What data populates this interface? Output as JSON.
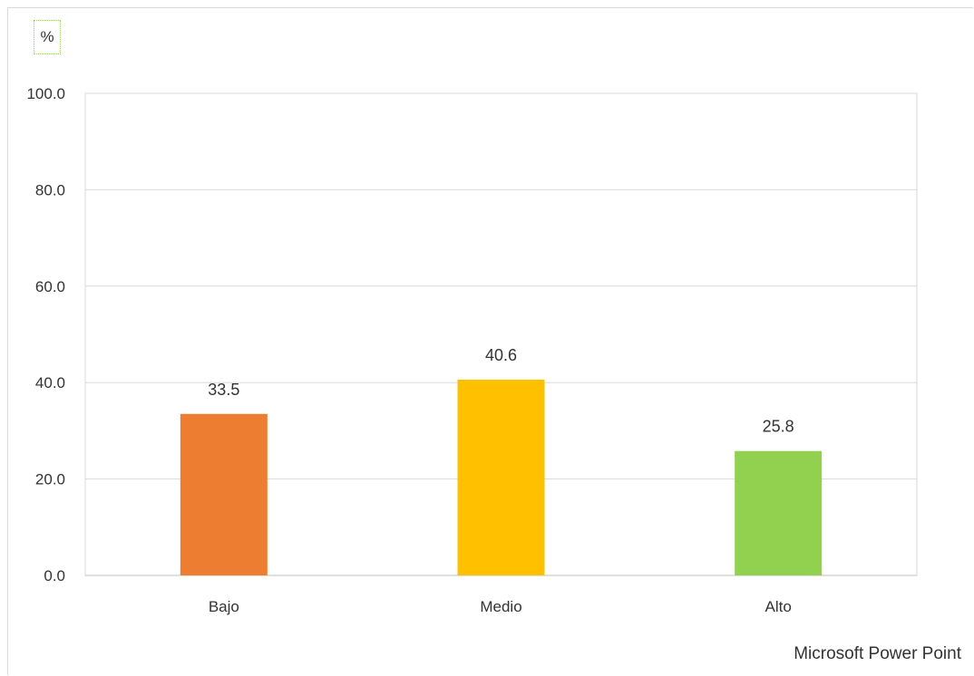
{
  "unit_label": "%",
  "footer_text": "Microsoft Power Point",
  "chart_data": {
    "type": "bar",
    "categories": [
      "Bajo",
      "Medio",
      "Alto"
    ],
    "values": [
      33.5,
      40.6,
      25.8
    ],
    "value_labels": [
      "33.5",
      "40.6",
      "25.8"
    ],
    "colors": [
      "#ed7d31",
      "#ffc000",
      "#92d050"
    ],
    "ylim": [
      0,
      100
    ],
    "yticks": [
      "0.0",
      "20.0",
      "40.0",
      "60.0",
      "80.0",
      "100.0"
    ],
    "grid": true,
    "xlabel": "",
    "ylabel": "%"
  }
}
